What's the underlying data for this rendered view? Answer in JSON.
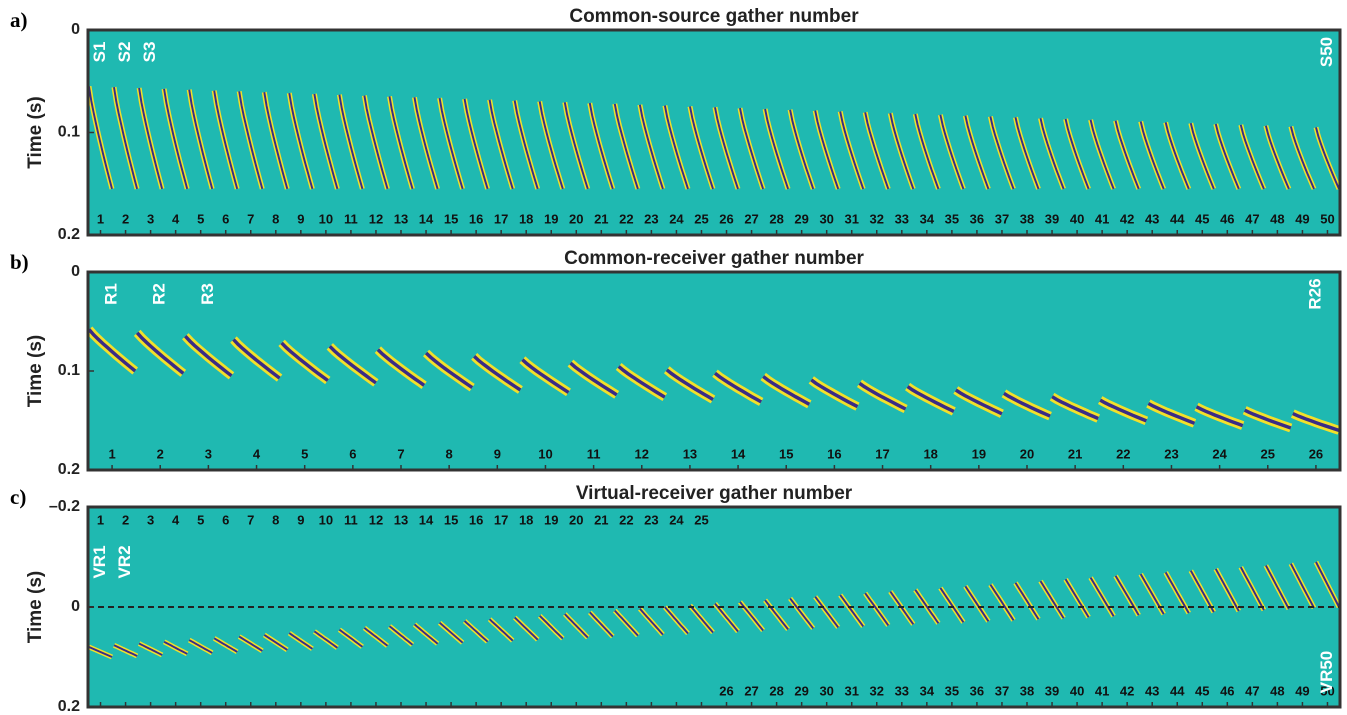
{
  "chart_data": [
    {
      "type": "gather",
      "panel_label": "a)",
      "title": "Common-source gather number",
      "y_label": "Time (s)",
      "ylim": [
        0,
        0.2
      ],
      "yticks": [
        0,
        0.1,
        0.2
      ],
      "background": "#1fb9b1",
      "categories": [
        "1",
        "2",
        "3",
        "4",
        "5",
        "6",
        "7",
        "8",
        "9",
        "10",
        "11",
        "12",
        "13",
        "14",
        "15",
        "16",
        "17",
        "18",
        "19",
        "20",
        "21",
        "22",
        "23",
        "24",
        "25",
        "26",
        "27",
        "28",
        "29",
        "30",
        "31",
        "32",
        "33",
        "34",
        "35",
        "36",
        "37",
        "38",
        "39",
        "40",
        "41",
        "42",
        "43",
        "44",
        "45",
        "46",
        "47",
        "48",
        "49",
        "50"
      ],
      "trace_labels": [
        "S1",
        "S2",
        "S3",
        "S50"
      ]
    },
    {
      "type": "gather",
      "panel_label": "b)",
      "title": "Common-receiver gather number",
      "y_label": "Time (s)",
      "ylim": [
        0,
        0.2
      ],
      "yticks": [
        0,
        0.1,
        0.2
      ],
      "background": "#1fb9b1",
      "categories": [
        "1",
        "2",
        "3",
        "4",
        "5",
        "6",
        "7",
        "8",
        "9",
        "10",
        "11",
        "12",
        "13",
        "14",
        "15",
        "16",
        "17",
        "18",
        "19",
        "20",
        "21",
        "22",
        "23",
        "24",
        "25",
        "26"
      ],
      "trace_labels": [
        "R1",
        "R2",
        "R3",
        "R26"
      ]
    },
    {
      "type": "gather",
      "panel_label": "c)",
      "title": "Virtual-receiver gather number",
      "y_label": "Time (s)",
      "ylim": [
        -0.2,
        0.2
      ],
      "yticks": [
        {
          "value": -0.2,
          "label": "–0.2"
        },
        0,
        0.2
      ],
      "background": "#1fb9b1",
      "reference_line": 0,
      "categories": [
        "1",
        "2",
        "3",
        "4",
        "5",
        "6",
        "7",
        "8",
        "9",
        "10",
        "11",
        "12",
        "13",
        "14",
        "15",
        "16",
        "17",
        "18",
        "19",
        "20",
        "21",
        "22",
        "23",
        "24",
        "25",
        "26",
        "27",
        "28",
        "29",
        "30",
        "31",
        "32",
        "33",
        "34",
        "35",
        "36",
        "37",
        "38",
        "39",
        "40",
        "41",
        "42",
        "43",
        "44",
        "45",
        "46",
        "47",
        "48",
        "49",
        "50"
      ],
      "trace_labels": [
        "VR1",
        "VR2",
        "VR50"
      ]
    }
  ]
}
